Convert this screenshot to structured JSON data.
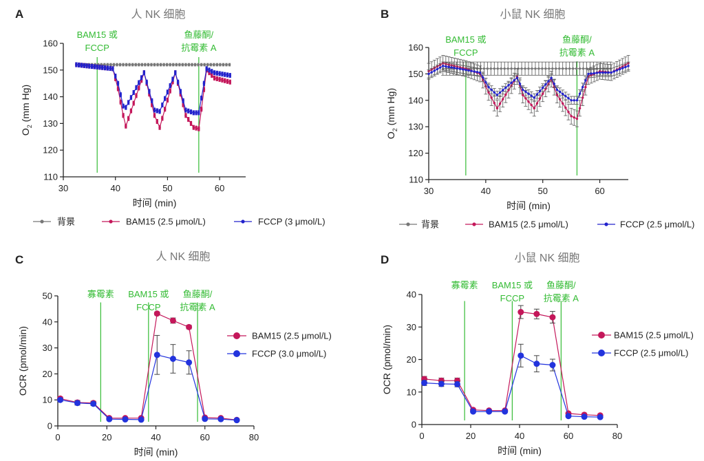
{
  "chart_data": [
    {
      "panel": "A",
      "type": "line",
      "title": "人 NK 细胞",
      "xlabel": "时间 (min)",
      "ylabel_main": "O",
      "ylabel_sub": "2",
      "ylabel_unit": " (mm Hg)",
      "xlim": [
        30,
        65
      ],
      "ylim": [
        110,
        160
      ],
      "xticks": [
        "30",
        "40",
        "50",
        "60"
      ],
      "yticks": [
        "110",
        "120",
        "130",
        "140",
        "150",
        "160"
      ],
      "annotations": [
        {
          "lines": [
            "BAM15 或",
            "FCCP"
          ],
          "x": 36.5
        },
        {
          "lines": [
            "鱼藤酮/",
            "抗霉素 A"
          ],
          "x": 56
        }
      ],
      "series": [
        {
          "name": "背景",
          "color": "#777777",
          "error": 0.3,
          "marker_step": 0.6,
          "errbars": false,
          "x": [
            32.5,
            39,
            40,
            44,
            45.5,
            49,
            51,
            55,
            57,
            62
          ],
          "y": [
            152,
            152,
            152,
            152,
            152,
            152,
            152,
            152,
            152,
            152
          ]
        },
        {
          "name": "BAM15 (2.5 μmol/L)",
          "color": "#c4175a",
          "error": 0.6,
          "marker_step": 0.5,
          "errbars": false,
          "x": [
            32.5,
            39.5,
            40.5,
            41.5,
            42,
            45.5,
            46.5,
            47.5,
            48.5,
            51.5,
            52.5,
            53.5,
            55,
            56,
            57.5,
            59,
            62
          ],
          "y": [
            152,
            150.5,
            143,
            133,
            129,
            149,
            141,
            133,
            128.5,
            149,
            141,
            133,
            128.5,
            128,
            150,
            147,
            145.5
          ]
        },
        {
          "name": "FCCP (3 μmol/L)",
          "color": "#2222cc",
          "error": 0.6,
          "marker_step": 0.5,
          "errbars": false,
          "x": [
            32.5,
            39.5,
            40.5,
            41.5,
            42,
            45.5,
            46.5,
            47.5,
            48.5,
            51.5,
            52.5,
            53.5,
            55,
            56,
            57.5,
            59,
            62
          ],
          "y": [
            152,
            150.5,
            145,
            136.5,
            136,
            149,
            142,
            135,
            134.5,
            149,
            142,
            135,
            134,
            134,
            150.5,
            149,
            148
          ]
        }
      ],
      "legend": [
        "背景",
        "BAM15 (2.5 μmol/L)",
        "FCCP (3 μmol/L)"
      ]
    },
    {
      "panel": "B",
      "type": "line",
      "title": "小鼠 NK 细胞",
      "xlabel": "时间 (min)",
      "ylabel_main": "O",
      "ylabel_sub": "2",
      "ylabel_unit": " (mm Hg)",
      "xlim": [
        30,
        65
      ],
      "ylim": [
        110,
        160
      ],
      "xticks": [
        "30",
        "40",
        "50",
        "60"
      ],
      "yticks": [
        "110",
        "120",
        "130",
        "140",
        "150",
        "160"
      ],
      "annotations": [
        {
          "lines": [
            "BAM15 或",
            "FCCP"
          ],
          "x": 36.5
        },
        {
          "lines": [
            "鱼藤酮/",
            "抗霉素 A"
          ],
          "x": 56
        }
      ],
      "series": [
        {
          "name": "背景",
          "color": "#777777",
          "error": 2.5,
          "marker_step": 0.6,
          "errbars": true,
          "x": [
            32.5,
            39,
            40,
            44,
            45.5,
            49,
            51,
            55,
            57,
            62
          ],
          "y": [
            152,
            152,
            152,
            152,
            152,
            152,
            152,
            152,
            152,
            152
          ]
        },
        {
          "name": "BAM15 (2.5 μmol/L)",
          "color": "#c4175a",
          "error": 3,
          "marker_step": 0.5,
          "errbars": true,
          "x": [
            30,
            32.5,
            36.5,
            39,
            40.5,
            42,
            45.5,
            46.5,
            48.5,
            51.5,
            52.5,
            55,
            56,
            58,
            60,
            62,
            65
          ],
          "y": [
            151,
            154,
            152,
            150,
            143,
            137,
            149,
            142,
            137,
            148,
            142,
            134,
            133,
            149,
            151,
            150.5,
            154
          ]
        },
        {
          "name": "FCCP (2.5 μmol/L)",
          "color": "#2222cc",
          "error": 1.5,
          "marker_step": 0.5,
          "errbars": true,
          "x": [
            30,
            32.5,
            36.5,
            39,
            40.5,
            42,
            45.5,
            46.5,
            48.5,
            51.5,
            52.5,
            55,
            56,
            58,
            60,
            62,
            65
          ],
          "y": [
            150,
            153,
            151.5,
            150.5,
            145,
            142,
            148.5,
            144,
            141,
            148.5,
            144,
            140,
            140,
            150,
            150.5,
            150.5,
            153
          ]
        }
      ],
      "legend": [
        "背景",
        "BAM15 (2.5 μmol/L)",
        "FCCP (2.5 μmol/L)"
      ]
    },
    {
      "panel": "C",
      "type": "line",
      "title": "人 NK 细胞",
      "xlabel": "时间 (min)",
      "ylabel": "OCR (pmol/min)",
      "xlim": [
        0,
        80
      ],
      "ylim": [
        0,
        50
      ],
      "xticks": [
        "0",
        "20",
        "40",
        "60",
        "80"
      ],
      "yticks": [
        "0",
        "10",
        "20",
        "30",
        "40",
        "50"
      ],
      "annotations": [
        {
          "lines": [
            "寡霉素"
          ],
          "x": 17.5
        },
        {
          "lines": [
            "BAM15 或",
            "FCCP"
          ],
          "x": 37
        },
        {
          "lines": [
            "鱼藤酮/",
            "抗霉素 A"
          ],
          "x": 57
        }
      ],
      "series": [
        {
          "name": "BAM15 (2.5 μmol/L)",
          "color": "#c4175a",
          "x": [
            1,
            8,
            14.5,
            21,
            27.5,
            34,
            40.5,
            47,
            53.5,
            60,
            66.5,
            73
          ],
          "y": [
            10.5,
            9,
            8.8,
            3,
            3,
            3,
            43.2,
            40.5,
            38,
            3.2,
            3,
            2.3
          ],
          "err": [
            0.6,
            0.8,
            0.7,
            0.3,
            0.3,
            0.3,
            0.6,
            1,
            0.7,
            0.3,
            0.3,
            0.2
          ]
        },
        {
          "name": "FCCP (3.0 μmol/L)",
          "color": "#2233dd",
          "x": [
            1,
            8,
            14.5,
            21,
            27.5,
            34,
            40.5,
            47,
            53.5,
            60,
            66.5,
            73
          ],
          "y": [
            10,
            8.8,
            8.5,
            2.6,
            2.5,
            2.4,
            27.3,
            25.8,
            24.4,
            2.7,
            2.6,
            2.2
          ],
          "err": [
            0.6,
            0.8,
            0.7,
            0.3,
            0.3,
            0.3,
            7.5,
            5.5,
            4.5,
            0.3,
            0.3,
            0.2
          ]
        }
      ],
      "legend": [
        "BAM15 (2.5 μmol/L)",
        "FCCP (3.0 μmol/L)"
      ]
    },
    {
      "panel": "D",
      "type": "line",
      "title": "小鼠 NK 细胞",
      "xlabel": "时间 (min)",
      "ylabel": "OCR (pmol/min)",
      "xlim": [
        0,
        80
      ],
      "ylim": [
        0,
        40
      ],
      "xticks": [
        "0",
        "20",
        "40",
        "60",
        "80"
      ],
      "yticks": [
        "0",
        "10",
        "20",
        "30",
        "40"
      ],
      "annotations": [
        {
          "lines": [
            "寡霉素"
          ],
          "x": 17.5
        },
        {
          "lines": [
            "BAM15 或",
            "FCCP"
          ],
          "x": 37
        },
        {
          "lines": [
            "鱼藤酮/",
            "抗霉素 A"
          ],
          "x": 57
        }
      ],
      "series": [
        {
          "name": "BAM15 (2.5 μmol/L)",
          "color": "#c4175a",
          "x": [
            1,
            8,
            14.5,
            21,
            27.5,
            34,
            40.5,
            47,
            53.5,
            60,
            66.5,
            73
          ],
          "y": [
            14,
            13.5,
            13.5,
            4.5,
            4.3,
            4.3,
            34.6,
            34,
            33,
            3.4,
            3,
            2.8
          ],
          "err": [
            0.8,
            0.8,
            0.8,
            0.4,
            0.4,
            0.4,
            2,
            1.5,
            1.8,
            0.3,
            0.3,
            0.3
          ]
        },
        {
          "name": "FCCP (2.5 μmol/L)",
          "color": "#2233dd",
          "x": [
            1,
            8,
            14.5,
            21,
            27.5,
            34,
            40.5,
            47,
            53.5,
            60,
            66.5,
            73
          ],
          "y": [
            12.8,
            12.5,
            12.4,
            4,
            4,
            4,
            21.2,
            18.7,
            18.3,
            2.6,
            2.4,
            2.3
          ],
          "err": [
            0.8,
            0.8,
            0.8,
            0.4,
            0.4,
            0.4,
            3.5,
            2.5,
            1.8,
            0.3,
            0.3,
            0.3
          ]
        }
      ],
      "legend": [
        "BAM15 (2.5 μmol/L)",
        "FCCP (2.5 μmol/L)"
      ]
    }
  ],
  "panels": {
    "A": {
      "label": "A"
    },
    "B": {
      "label": "B"
    },
    "C": {
      "label": "C"
    },
    "D": {
      "label": "D"
    }
  },
  "colors": {
    "annotation_green": "#33bb33",
    "axis": "#222222",
    "title_grey": "#777777",
    "text": "#222222"
  }
}
